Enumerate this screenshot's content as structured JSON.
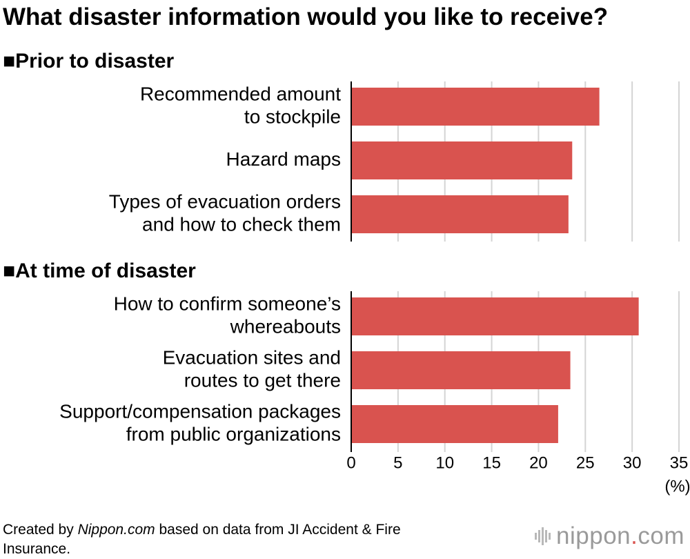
{
  "title": "What disaster information would you like to receive?",
  "chart_data": {
    "type": "bar",
    "orientation": "horizontal",
    "title": "What disaster information would you like to receive?",
    "xlabel": "(%)",
    "xlim": [
      0,
      35
    ],
    "x_ticks": [
      "0",
      "5",
      "10",
      "15",
      "20",
      "25",
      "30",
      "35"
    ],
    "grid": true,
    "bar_color": "#d9534f",
    "groups": [
      {
        "heading": "■Prior to disaster",
        "categories": [
          [
            "Recommended amount",
            "to stockpile"
          ],
          [
            "Hazard maps"
          ],
          [
            "Types of evacuation orders",
            "and how to check them"
          ]
        ],
        "values": [
          26.5,
          23.6,
          23.2
        ]
      },
      {
        "heading": "■At time of disaster",
        "categories": [
          [
            "How to confirm someone’s",
            "whereabouts"
          ],
          [
            "Evacuation sites and",
            "routes to get there"
          ],
          [
            "Support/compensation packages",
            "from public organizations"
          ]
        ],
        "values": [
          30.7,
          23.4,
          22.1
        ]
      }
    ]
  },
  "footer": {
    "prefix": "Created by ",
    "source_site": "Nippon.com",
    "suffix": " based on data from JI Accident & Fire Insurance."
  },
  "brand": {
    "name": "nippon",
    "dot": ".",
    "tld": "com"
  }
}
